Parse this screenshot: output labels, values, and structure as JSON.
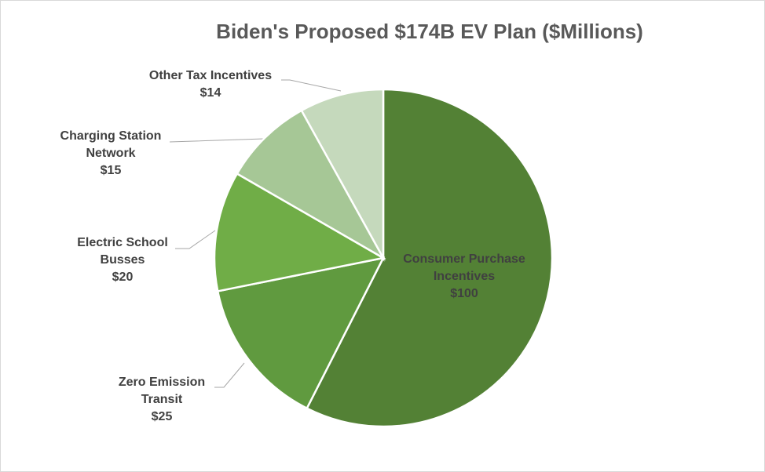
{
  "chart_data": {
    "type": "pie",
    "title": "Biden's Proposed $174B EV Plan ($Millions)",
    "categories": [
      "Consumer Purchase Incentives",
      "Zero Emission Transit",
      "Electric School Busses",
      "Charging Station Network",
      "Other Tax Incentives"
    ],
    "values": [
      100,
      25,
      20,
      15,
      14
    ],
    "value_labels": [
      "$100",
      "$25",
      "$20",
      "$15",
      "$14"
    ],
    "colors": [
      "#538135",
      "#609a3f",
      "#70ad47",
      "#a6c796",
      "#c5d9bc"
    ]
  }
}
